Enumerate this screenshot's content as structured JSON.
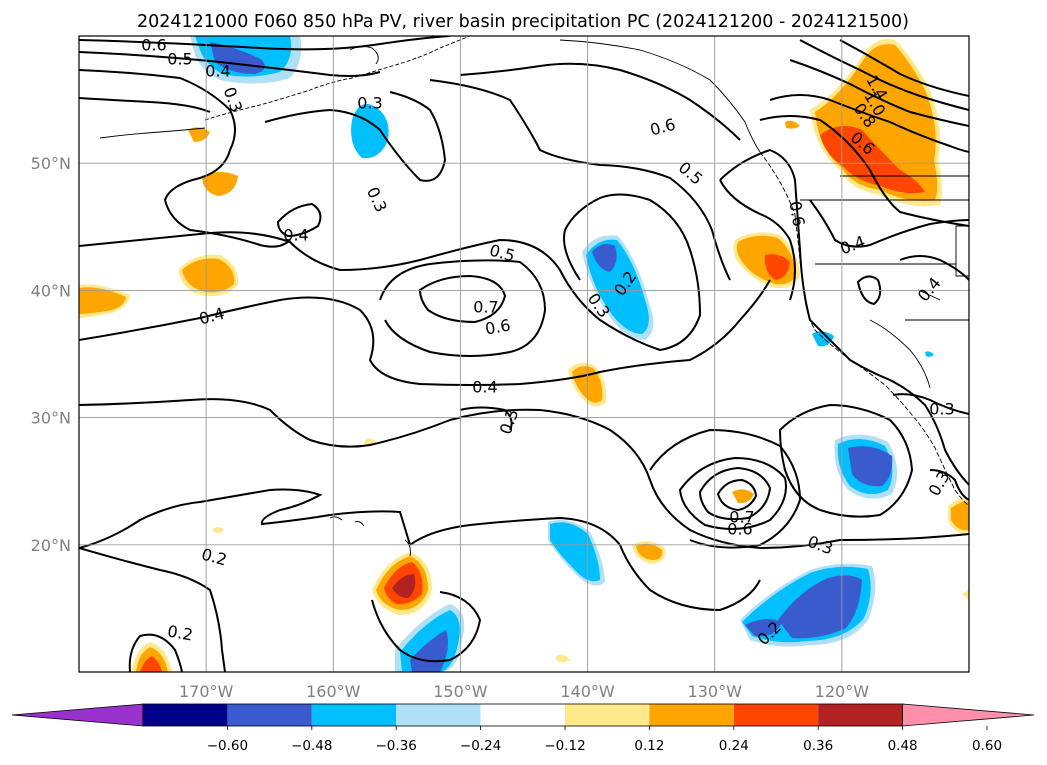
{
  "chart_data": {
    "type": "map-contour",
    "title": "2024121000 F060 850 hPa PV, river basin precipitation PC (2024121200 - 2024121500)",
    "x_tick_labels": [
      "170°W",
      "160°W",
      "150°W",
      "140°W",
      "130°W",
      "120°W"
    ],
    "y_tick_labels": [
      "50°N",
      "40°N",
      "30°N",
      "20°N"
    ],
    "lon_range": [
      -180,
      -110
    ],
    "lat_range": [
      10,
      60
    ],
    "grid": true,
    "colorbar": {
      "orientation": "horizontal",
      "extend": "both",
      "tick_labels": [
        "−0.60",
        "−0.48",
        "−0.36",
        "−0.24",
        "−0.12",
        "0.12",
        "0.24",
        "0.36",
        "0.48",
        "0.60"
      ],
      "colors": [
        "#9932cc",
        "#00008b",
        "#3a5bcd",
        "#00bfff",
        "#b0e0f6",
        "#ffffff",
        "#ffe98a",
        "#ffa500",
        "#ff4500",
        "#b22222",
        "#ff8fab"
      ]
    },
    "contour_labels": [
      "0.6",
      "0.5",
      "0.4",
      "0.3",
      "0.3",
      "0.3",
      "0.4",
      "0.4",
      "0.5",
      "0.7",
      "0.6",
      "0.2",
      "0.3",
      "0.4",
      "0.3",
      "0.6",
      "0.5",
      "0.6",
      "0.4",
      "1.4",
      "1.0",
      "0.8",
      "0.6",
      "0.4",
      "0.3",
      "0.3",
      "0.7",
      "0.6",
      "0.3",
      "0.2",
      "0.2",
      "0.2"
    ]
  }
}
